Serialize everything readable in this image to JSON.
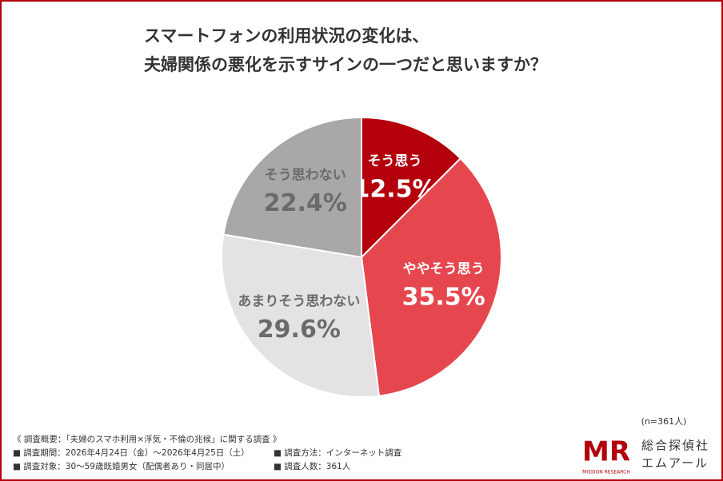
{
  "chart_data": {
    "type": "pie",
    "title": [
      "スマートフォンの利用状況の変化は、",
      "夫婦関係の悪化を示すサインの一つだと思いますか？"
    ],
    "categories": [
      "そう思う",
      "ややそう思う",
      "あまりそう思わない",
      "そう思わない"
    ],
    "values": [
      12.5,
      35.5,
      29.6,
      22.4
    ],
    "value_labels": [
      "12.5%",
      "35.5%",
      "29.6%",
      "22.4%"
    ],
    "colors": [
      "#b3000c",
      "#e6474f",
      "#e4e2e4",
      "#a9a7a9"
    ],
    "label_colors": [
      "#ffffff",
      "#ffffff",
      "#6b6b6b",
      "#6b6b6b"
    ],
    "sample_size": "(n=361人)"
  },
  "footer": {
    "heading": "《 調査概要：「夫婦のスマホ利用×浮気・不倫の兆候」に関する調査 》",
    "items": [
      "■ 調査期間：2026年4月24日（金）〜2026年4月25日（土）",
      "■ 調査方法：インターネット調査",
      "■ 調査対象：30〜59歳既婚男女（配偶者あり・同居中）",
      "■ 調査人数：361人"
    ]
  },
  "logo": {
    "mark": "MR",
    "sub": "MISSION RESEARCH",
    "name1": "総合探偵社",
    "name2": "エムアール"
  }
}
